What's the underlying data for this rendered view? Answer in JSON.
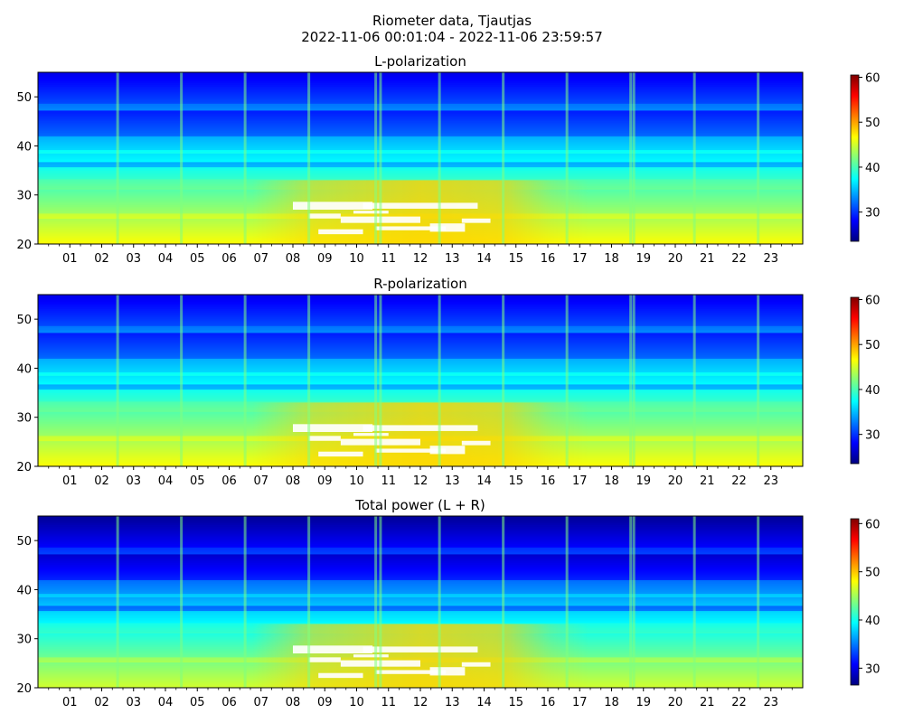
{
  "suptitle": {
    "line1": "Riometer data, Tjautjas",
    "line2": "2022-11-06 00:01:04 - 2022-11-06 23:59:57"
  },
  "colormap": "jet",
  "colors": {
    "jet_stops": [
      "#00007f",
      "#0000ff",
      "#007fff",
      "#00ffff",
      "#7fff7f",
      "#ffff00",
      "#ff7f00",
      "#ff0000",
      "#7f0000"
    ],
    "saturated": "#ffffff"
  },
  "chart_data": [
    {
      "type": "heatmap",
      "title": "L-polarization",
      "x_ticks": [
        "01",
        "02",
        "03",
        "04",
        "05",
        "06",
        "07",
        "08",
        "09",
        "10",
        "11",
        "12",
        "13",
        "14",
        "15",
        "16",
        "17",
        "18",
        "19",
        "20",
        "21",
        "22",
        "23"
      ],
      "x_range_hours": [
        0,
        24
      ],
      "y_ticks": [
        20,
        30,
        40,
        50
      ],
      "ylim": [
        20,
        55
      ],
      "colorbar": {
        "vmin": 23.5,
        "vmax": 60.5,
        "ticks": [
          30,
          40,
          50,
          60
        ]
      }
    },
    {
      "type": "heatmap",
      "title": "R-polarization",
      "x_ticks": [
        "01",
        "02",
        "03",
        "04",
        "05",
        "06",
        "07",
        "08",
        "09",
        "10",
        "11",
        "12",
        "13",
        "14",
        "15",
        "16",
        "17",
        "18",
        "19",
        "20",
        "21",
        "22",
        "23"
      ],
      "x_range_hours": [
        0,
        24
      ],
      "y_ticks": [
        20,
        30,
        40,
        50
      ],
      "ylim": [
        20,
        55
      ],
      "colorbar": {
        "vmin": 23.5,
        "vmax": 60.5,
        "ticks": [
          30,
          40,
          50,
          60
        ]
      }
    },
    {
      "type": "heatmap",
      "title": "Total power (L + R)",
      "x_ticks": [
        "01",
        "02",
        "03",
        "04",
        "05",
        "06",
        "07",
        "08",
        "09",
        "10",
        "11",
        "12",
        "13",
        "14",
        "15",
        "16",
        "17",
        "18",
        "19",
        "20",
        "21",
        "22",
        "23"
      ],
      "x_range_hours": [
        0,
        24
      ],
      "y_ticks": [
        20,
        30,
        40,
        50
      ],
      "ylim": [
        20,
        55
      ],
      "colorbar": {
        "vmin": 26.5,
        "vmax": 61.0,
        "ticks": [
          30,
          40,
          50,
          60
        ]
      }
    }
  ]
}
